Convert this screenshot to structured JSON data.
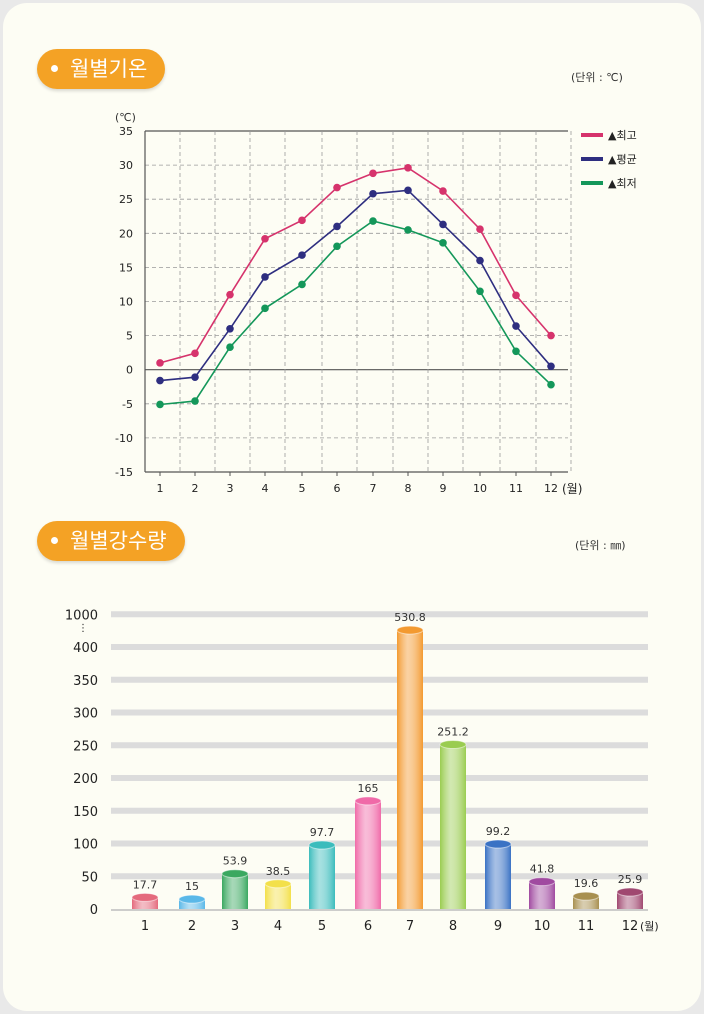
{
  "temperature_section": {
    "title": "월별기온",
    "unit": "(단위 : ℃)",
    "y_unit_label": "(℃)",
    "x_unit_label": "(월)"
  },
  "precipitation_section": {
    "title": "월별강수량",
    "unit": "(단위 : ㎜)",
    "x_unit_label": "(월)"
  },
  "chart_data": [
    {
      "type": "line",
      "x": [
        "1",
        "2",
        "3",
        "4",
        "5",
        "6",
        "7",
        "8",
        "9",
        "10",
        "11",
        "12"
      ],
      "ylim": [
        -15,
        35
      ],
      "yticks": [
        35,
        30,
        25,
        20,
        15,
        10,
        5,
        0,
        -5,
        -10,
        -15
      ],
      "grid": true,
      "legend_position": "top-right",
      "series": [
        {
          "name": "▲최고",
          "color": "#d6336c",
          "values": [
            1.0,
            2.4,
            11.0,
            19.2,
            21.9,
            26.7,
            28.8,
            29.6,
            26.2,
            20.6,
            10.9,
            5.0
          ]
        },
        {
          "name": "▲평균",
          "color": "#2e2e80",
          "values": [
            -1.6,
            -1.1,
            6.0,
            13.6,
            16.8,
            21.0,
            25.8,
            26.3,
            21.3,
            16.0,
            6.4,
            0.5
          ]
        },
        {
          "name": "▲최저",
          "color": "#14975a",
          "values": [
            -5.1,
            -4.6,
            3.3,
            9.0,
            12.5,
            18.1,
            21.8,
            20.5,
            18.6,
            11.5,
            2.7,
            -2.2
          ]
        }
      ]
    },
    {
      "type": "bar",
      "categories": [
        "1",
        "2",
        "3",
        "4",
        "5",
        "6",
        "7",
        "8",
        "9",
        "10",
        "11",
        "12"
      ],
      "values": [
        17.7,
        15,
        53.9,
        38.5,
        97.7,
        165,
        530.8,
        251.2,
        99.2,
        41.8,
        19.6,
        25.9
      ],
      "value_labels": [
        "17.7",
        "15",
        "53.9",
        "38.5",
        "97.7",
        "165",
        "530.8",
        "251.2",
        "99.2",
        "41.8",
        "19.6",
        "25.9"
      ],
      "yticks": [
        "1000",
        "400",
        "350",
        "300",
        "250",
        "200",
        "150",
        "100",
        "50",
        "0"
      ],
      "axis_break": true,
      "colors": [
        "#e46a7c",
        "#5ab8e8",
        "#3aa860",
        "#f3e04a",
        "#3bbcbc",
        "#f06aa8",
        "#f39a30",
        "#9acc50",
        "#3a72c4",
        "#a04aa0",
        "#a89050",
        "#a04870"
      ]
    }
  ]
}
